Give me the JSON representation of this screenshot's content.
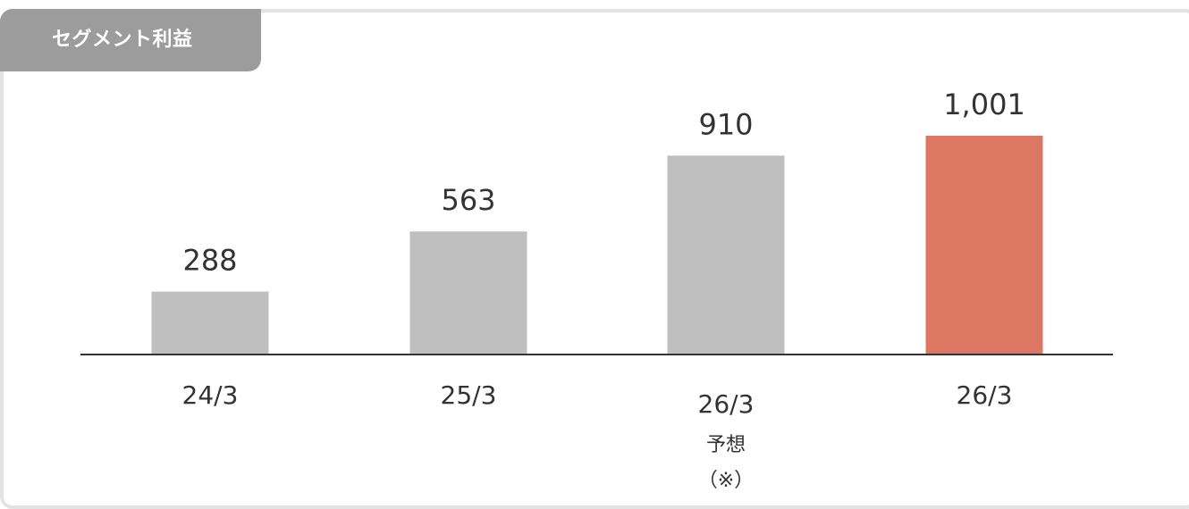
{
  "title": "セグメント利益",
  "colors": {
    "default_bar": "#bfbfbf",
    "highlight_bar": "#dc7764",
    "axis": "#333333",
    "title_bg": "#9c9c9c",
    "frame": "#e3e3e3"
  },
  "chart_data": {
    "type": "bar",
    "categories": [
      "24/3",
      "25/3",
      "26/3",
      "26/3"
    ],
    "category_notes": [
      [],
      [],
      [
        "予想",
        "（※）"
      ],
      []
    ],
    "values": [
      288,
      563,
      910,
      1001
    ],
    "value_labels": [
      "288",
      "563",
      "910",
      "1,001"
    ],
    "highlight": [
      false,
      false,
      false,
      true
    ],
    "ylim": [
      0,
      1100
    ],
    "grid": false,
    "legend": "none",
    "title": "セグメント利益",
    "xlabel": "",
    "ylabel": ""
  }
}
